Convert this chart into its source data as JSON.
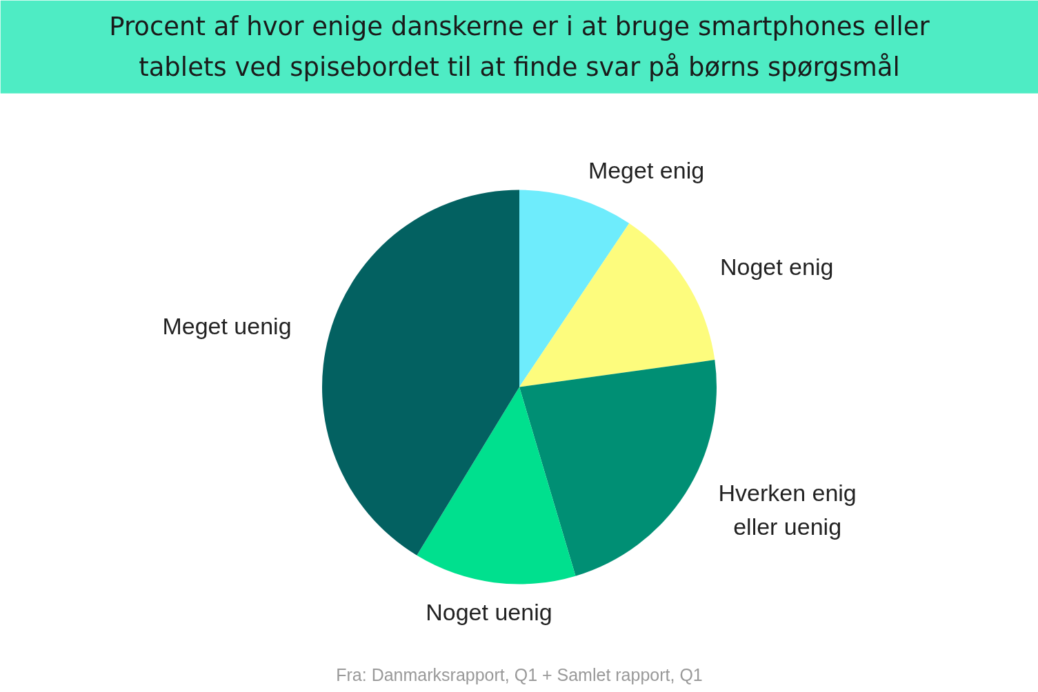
{
  "chart_data": {
    "type": "pie",
    "title": "Procent af hvor enige danskerne er i at bruge smartphones eller tablets ved spisebordet til at finde svar på børns spørgsmål",
    "categories": [
      "Meget enig",
      "Noget enig",
      "Hverken enig eller uenig",
      "Noget uenig",
      "Meget uenig"
    ],
    "values": [
      9.4,
      13.4,
      22.6,
      13.3,
      41.3
    ],
    "colors": [
      "#6eecfc",
      "#fdfc7d",
      "#008f74",
      "#00e08e",
      "#036161"
    ],
    "annotations": [
      "Fra: Danmarksrapport, Q1 + Samlet rapport, Q1"
    ]
  }
}
